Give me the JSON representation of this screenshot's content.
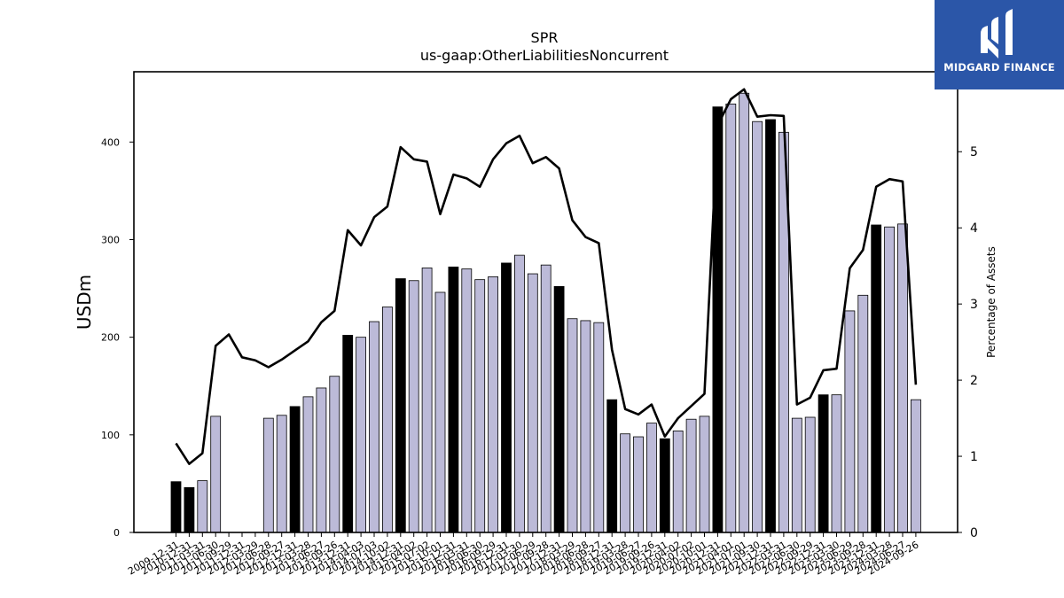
{
  "chart_data": {
    "type": "bar",
    "title": "SPR",
    "subtitle": "us-gaap:OtherLiabilitiesNoncurrent",
    "ylabel": "USDm",
    "y2label": "Percentage of Assets",
    "ylim": [
      0,
      472
    ],
    "y2lim": [
      0,
      6.05
    ],
    "yticks": [
      0,
      100,
      200,
      300,
      400
    ],
    "y2ticks": [
      0,
      1,
      2,
      3,
      4,
      5
    ],
    "grid": false,
    "colors": {
      "annual": "#000000",
      "quarterly": "#bcbad8",
      "line": "#000000"
    },
    "categories": [
      "2009-12-31",
      "2010-12-31",
      "2011-03-31",
      "2011-06-30",
      "2011-09-29",
      "2011-12-31",
      "2012-03-29",
      "2012-06-28",
      "2012-09-27",
      "2012-12-31",
      "2013-03-28",
      "2013-06-27",
      "2013-09-26",
      "2013-12-31",
      "2014-04-03",
      "2014-07-03",
      "2014-10-02",
      "2014-12-31",
      "2015-04-02",
      "2015-07-02",
      "2015-10-01",
      "2015-12-31",
      "2016-03-31",
      "2016-06-30",
      "2016-09-29",
      "2016-12-31",
      "2017-03-30",
      "2017-06-29",
      "2017-09-28",
      "2017-12-31",
      "2018-03-29",
      "2018-06-28",
      "2018-09-27",
      "2018-12-31",
      "2019-03-28",
      "2019-06-27",
      "2019-09-26",
      "2019-12-31",
      "2020-04-02",
      "2020-07-02",
      "2020-10-01",
      "2020-12-31",
      "2021-04-01",
      "2021-07-01",
      "2021-09-30",
      "2021-12-31",
      "2022-03-31",
      "2022-06-30",
      "2022-09-29",
      "2022-12-31",
      "2023-03-30",
      "2023-06-29",
      "2023-09-28",
      "2023-12-31",
      "2024-03-28",
      "2024-06-27",
      "2024-09-26"
    ],
    "annual_flags": [
      1,
      1,
      0,
      0,
      0,
      0,
      0,
      0,
      0,
      1,
      0,
      0,
      0,
      1,
      0,
      0,
      0,
      1,
      0,
      0,
      0,
      1,
      0,
      0,
      0,
      1,
      0,
      0,
      0,
      1,
      0,
      0,
      0,
      1,
      0,
      0,
      0,
      1,
      0,
      0,
      0,
      1,
      0,
      0,
      0,
      1,
      0,
      0,
      0,
      1,
      0,
      0,
      0,
      1,
      0,
      0,
      0
    ],
    "series": [
      {
        "name": "USDm",
        "values": [
          52,
          46,
          53,
          119,
          null,
          null,
          null,
          117,
          120,
          129,
          139,
          148,
          160,
          202,
          200,
          216,
          231,
          260,
          258,
          271,
          246,
          272,
          270,
          259,
          262,
          276,
          284,
          265,
          274,
          252,
          219,
          217,
          215,
          136,
          101,
          98,
          112,
          96,
          104,
          116,
          119,
          436,
          439,
          450,
          421,
          423,
          410,
          117,
          118,
          141,
          141,
          227,
          243,
          315,
          313,
          316,
          136
        ]
      },
      {
        "name": "Percentage of Assets",
        "values": [
          1.17,
          0.9,
          1.04,
          2.45,
          2.6,
          2.3,
          2.26,
          2.17,
          2.27,
          2.39,
          2.51,
          2.76,
          2.91,
          3.97,
          3.77,
          4.14,
          4.28,
          5.06,
          4.9,
          4.87,
          4.18,
          4.7,
          4.65,
          4.54,
          4.9,
          5.11,
          5.21,
          4.85,
          4.93,
          4.78,
          4.1,
          3.88,
          3.8,
          2.4,
          1.62,
          1.55,
          1.68,
          1.26,
          1.5,
          1.66,
          1.82,
          5.35,
          5.69,
          5.82,
          5.46,
          5.48,
          5.47,
          1.68,
          1.77,
          2.13,
          2.15,
          3.47,
          3.71,
          4.54,
          4.64,
          4.61,
          1.94
        ]
      }
    ]
  },
  "logo": {
    "text": "MIDGARD FINANCE"
  }
}
